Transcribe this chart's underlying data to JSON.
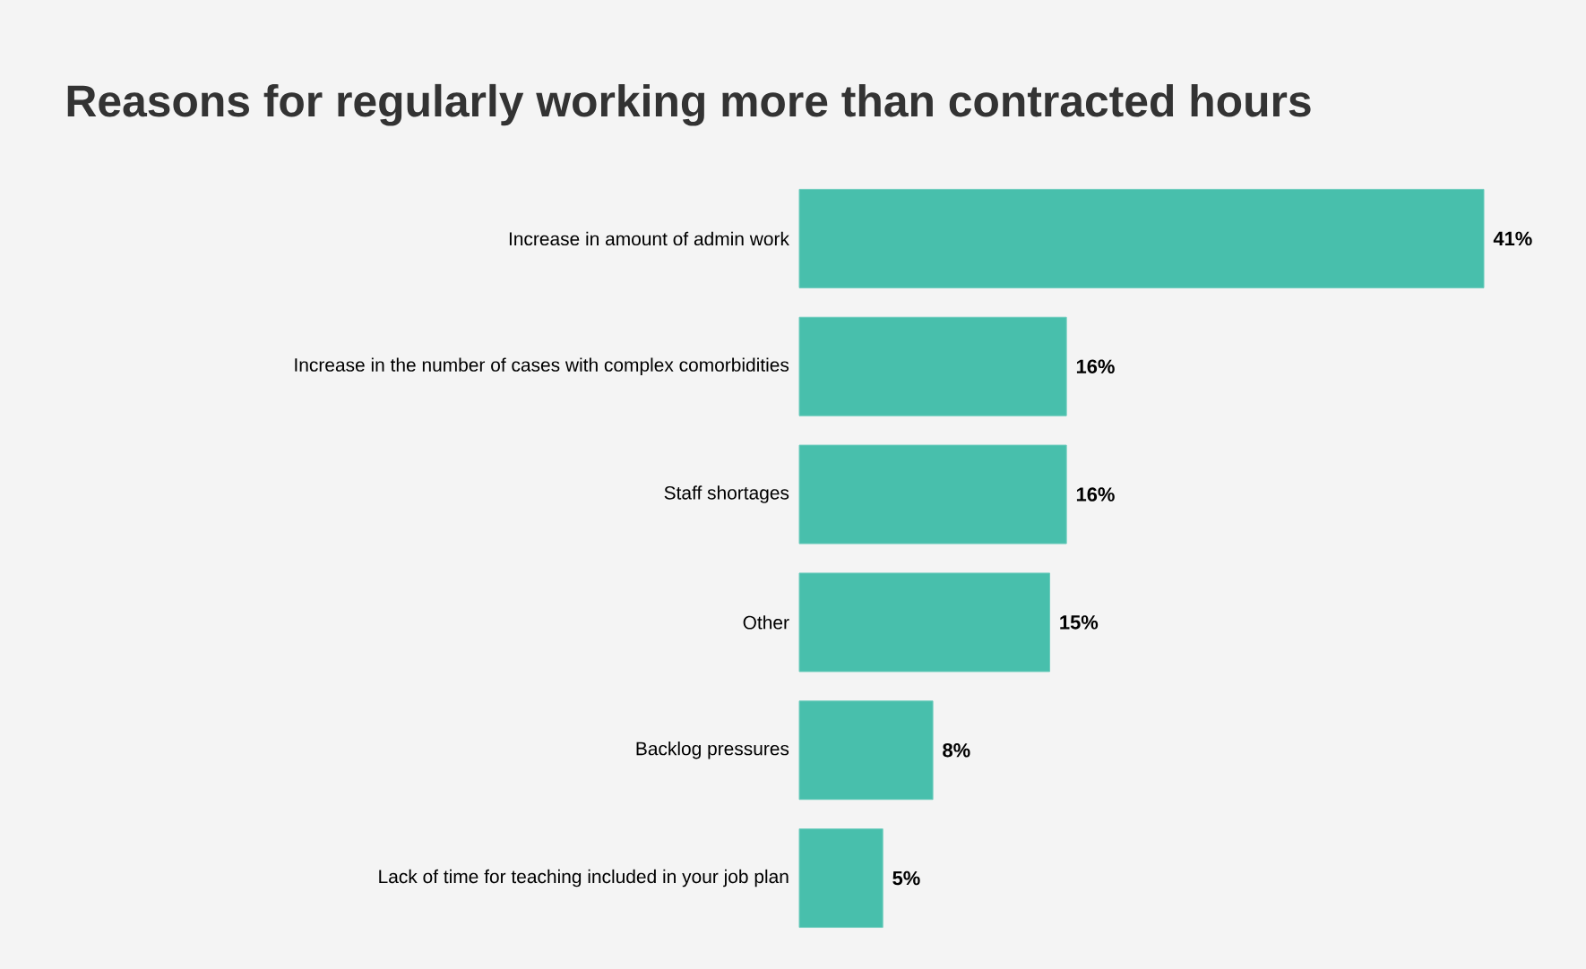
{
  "chart_data": {
    "type": "bar",
    "orientation": "horizontal",
    "title": "Reasons for regularly working more than contracted hours",
    "categories": [
      "Increase in amount of admin work",
      "Increase in the number of cases with complex comorbidities",
      "Staff shortages",
      "Other",
      "Backlog pressures",
      "Lack of time for teaching included in your job plan"
    ],
    "values": [
      41,
      16,
      16,
      15,
      8,
      5
    ],
    "value_labels": [
      "41%",
      "16%",
      "16%",
      "15%",
      "8%",
      "5%"
    ],
    "color": "#48bfac"
  }
}
